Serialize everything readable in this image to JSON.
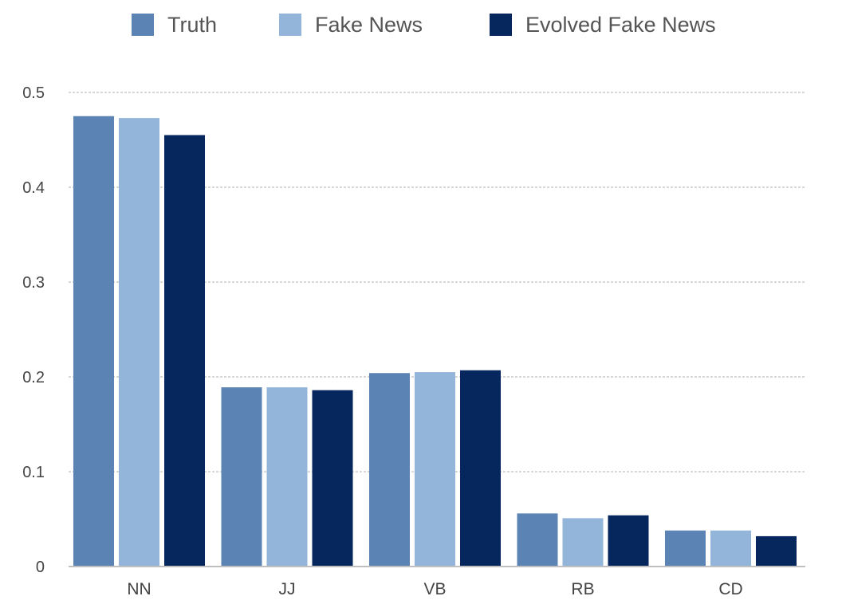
{
  "chart_data": {
    "type": "bar",
    "categories": [
      "NN",
      "JJ",
      "VB",
      "RB",
      "CD"
    ],
    "series": [
      {
        "name": "Truth",
        "color": "#5b83b3",
        "values": [
          0.475,
          0.189,
          0.204,
          0.056,
          0.038
        ]
      },
      {
        "name": "Fake News",
        "color": "#93b5da",
        "values": [
          0.473,
          0.189,
          0.205,
          0.051,
          0.038
        ]
      },
      {
        "name": "Evolved Fake News",
        "color": "#06265e",
        "values": [
          0.455,
          0.186,
          0.207,
          0.054,
          0.032
        ]
      }
    ],
    "ylim": [
      0,
      0.5
    ],
    "yticks": [
      "0",
      "0.1",
      "0.2",
      "0.3",
      "0.4",
      "0.5"
    ],
    "grid": true,
    "legend": "top-center"
  }
}
